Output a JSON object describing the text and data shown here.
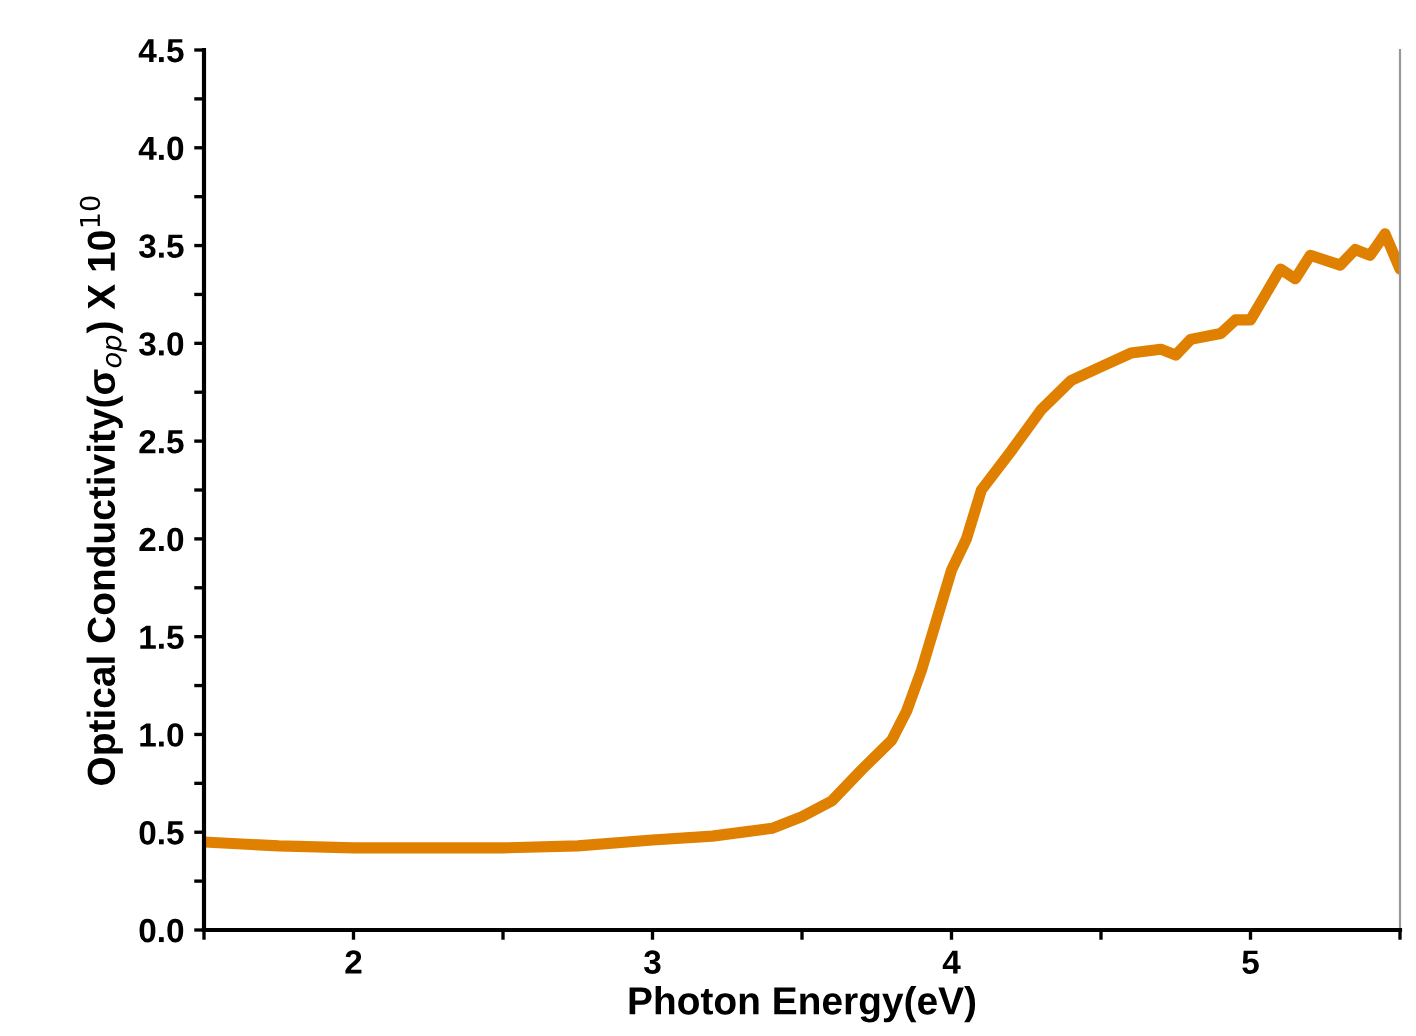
{
  "chart_data": {
    "type": "line",
    "xlabel": "Photon Energy(eV)",
    "ylabel": "Optical Conductivity(σ$_{op}$) X 10$^{10}$",
    "x": [
      1.5,
      1.75,
      2.0,
      2.5,
      2.75,
      3.0,
      3.2,
      3.4,
      3.5,
      3.6,
      3.7,
      3.8,
      3.85,
      3.9,
      4.0,
      4.05,
      4.1,
      4.2,
      4.3,
      4.4,
      4.5,
      4.6,
      4.7,
      4.75,
      4.8,
      4.9,
      4.95,
      5.0,
      5.05,
      5.1,
      5.15,
      5.2,
      5.3,
      5.35,
      5.4,
      5.45,
      5.5
    ],
    "series": [
      {
        "color": "#e08000",
        "values": [
          0.45,
          0.43,
          0.42,
          0.42,
          0.43,
          0.46,
          0.48,
          0.52,
          0.58,
          0.66,
          0.82,
          0.97,
          1.12,
          1.33,
          1.84,
          2.0,
          2.25,
          2.45,
          2.66,
          2.81,
          2.88,
          2.95,
          2.97,
          2.94,
          3.02,
          3.05,
          3.12,
          3.12,
          3.25,
          3.38,
          3.33,
          3.45,
          3.4,
          3.48,
          3.45,
          3.56,
          3.38
        ]
      }
    ],
    "xlim": [
      1.5,
      5.5
    ],
    "ylim": [
      0,
      4.5
    ],
    "xticks": [
      {
        "value": 1.5,
        "label": null
      },
      2,
      {
        "value": 2.5,
        "label": null
      },
      3,
      {
        "value": 3.5,
        "label": null
      },
      4,
      {
        "value": 4.5,
        "label": null
      },
      5,
      {
        "value": 5.5,
        "label": null
      }
    ],
    "yticks": [
      {
        "value": 0,
        "label": "0.0"
      },
      {
        "value": 0.25,
        "label": null
      },
      0.5,
      {
        "value": 0.75,
        "label": null
      },
      {
        "value": 1,
        "label": "1.0"
      },
      {
        "value": 1.25,
        "label": null
      },
      1.5,
      {
        "value": 1.75,
        "label": null
      },
      {
        "value": 2,
        "label": "2.0"
      },
      {
        "value": 2.25,
        "label": null
      },
      2.5,
      {
        "value": 2.75,
        "label": null
      },
      {
        "value": 3,
        "label": "3.0"
      },
      {
        "value": 3.25,
        "label": null
      },
      3.5,
      {
        "value": 3.75,
        "label": null
      },
      {
        "value": 4,
        "label": "4.0"
      },
      {
        "value": 4.25,
        "label": null
      },
      4.5
    ],
    "grid": false,
    "legend": false,
    "marker": "none",
    "line_style": "solid"
  }
}
